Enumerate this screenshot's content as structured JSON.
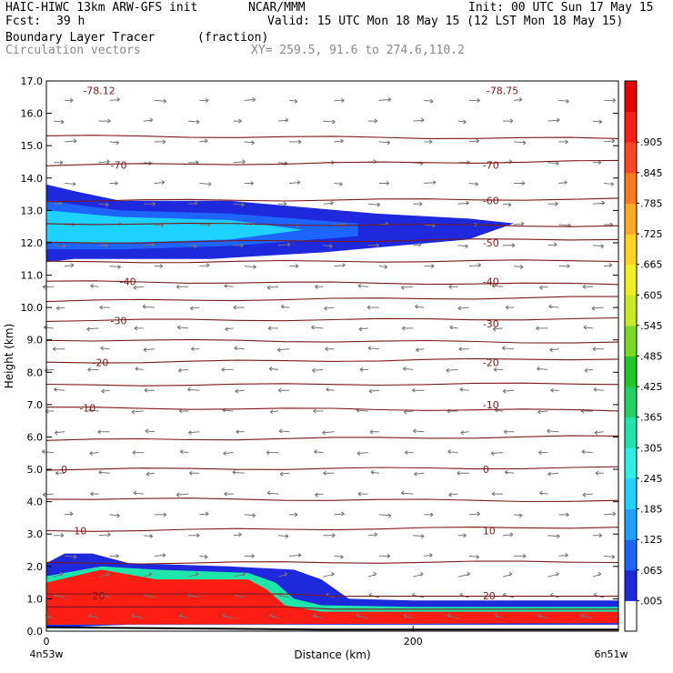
{
  "header": {
    "model": "HAIC-HIWC 13km ARW-GFS init",
    "org": "NCAR/MMM",
    "init": "Init: 00 UTC Sun 17 May 15",
    "fcst_label": "Fcst:",
    "fcst_value": "39 h",
    "valid": "Valid: 15 UTC Mon 18 May 15 (12 LST Mon 18 May 15)",
    "field_name": "Boundary Layer Tracer",
    "field_units": "(fraction)",
    "vector_label": "Circulation vectors",
    "xy_label": "XY= 259.5, 91.6 to 274.6,110.2"
  },
  "colors": {
    "contour": "#7a1a1a",
    "vector": "#777777",
    "ramp": [
      "#ffffff",
      "#1e28dc",
      "#1e64ff",
      "#1ea0ff",
      "#1ed2ff",
      "#28f0e6",
      "#1ee6aa",
      "#1ed264",
      "#1ec828",
      "#78dc1e",
      "#c8eb1e",
      "#f0f01e",
      "#ffd21e",
      "#ffaa1e",
      "#ff781e",
      "#ff461e",
      "#ff1e14",
      "#eb0000"
    ]
  },
  "chart_data": {
    "type": "cross-section",
    "title": "Boundary Layer Tracer",
    "units": "(fraction)",
    "xlabel": "Distance (km)",
    "ylabel": "Height (km)",
    "xlim": [
      0,
      312
    ],
    "ylim": [
      0,
      17
    ],
    "x_ticks": [
      0,
      200
    ],
    "x_tick_labels": [
      "0",
      "200"
    ],
    "x_endpoint_labels": [
      "4n53w",
      "6n51w"
    ],
    "y_ticks": [
      0,
      1,
      2,
      3,
      4,
      5,
      6,
      7,
      8,
      9,
      10,
      11,
      12,
      13,
      14,
      15,
      16,
      17
    ],
    "y_tick_labels": [
      "0.0",
      "1.0",
      "2.0",
      "3.0",
      "4.0",
      "5.0",
      "6.0",
      "7.0",
      "8.0",
      "9.0",
      "10.0",
      "11.0",
      "12.0",
      "13.0",
      "14.0",
      "15.0",
      "16.0",
      "17.0"
    ],
    "colorbar_labels": [
      ".005",
      ".065",
      ".125",
      ".185",
      ".245",
      ".305",
      ".365",
      ".425",
      ".485",
      ".545",
      ".605",
      ".665",
      ".725",
      ".785",
      ".845",
      ".905"
    ],
    "temperature_contours": [
      {
        "value": -78.12,
        "label": "-78.12",
        "x": 20,
        "y": 16.7
      },
      {
        "value": -78.75,
        "label": "-78.75",
        "x": 240,
        "y": 16.7
      },
      {
        "value": -70,
        "label": "-70",
        "x": 35,
        "y": 14.4
      },
      {
        "value": -70,
        "label": "-70",
        "x": 238,
        "y": 14.4
      },
      {
        "value": -60,
        "label": "-60",
        "x": 238,
        "y": 13.3
      },
      {
        "value": -50,
        "label": "-50",
        "x": 238,
        "y": 12.0
      },
      {
        "value": -40,
        "label": "-40",
        "x": 40,
        "y": 10.8
      },
      {
        "value": -40,
        "label": "-40",
        "x": 238,
        "y": 10.8
      },
      {
        "value": -30,
        "label": "-30",
        "x": 35,
        "y": 9.6
      },
      {
        "value": -30,
        "label": "-30",
        "x": 238,
        "y": 9.5
      },
      {
        "value": -20,
        "label": "-20",
        "x": 25,
        "y": 8.3
      },
      {
        "value": -20,
        "label": "-20",
        "x": 238,
        "y": 8.3
      },
      {
        "value": -10,
        "label": "-10",
        "x": 18,
        "y": 6.9
      },
      {
        "value": -10,
        "label": "-10",
        "x": 238,
        "y": 7.0
      },
      {
        "value": 0,
        "label": "0",
        "x": 8,
        "y": 5.0
      },
      {
        "value": 0,
        "label": "0",
        "x": 238,
        "y": 5.0
      },
      {
        "value": 10,
        "label": "10",
        "x": 15,
        "y": 3.1
      },
      {
        "value": 10,
        "label": "10",
        "x": 238,
        "y": 3.1
      },
      {
        "value": 20,
        "label": "20",
        "x": 25,
        "y": 1.1
      },
      {
        "value": 20,
        "label": "20",
        "x": 238,
        "y": 1.1
      }
    ],
    "contour_line_heights_km": [
      0.7,
      1.1,
      2.1,
      3.1,
      4.1,
      5.0,
      5.9,
      6.9,
      7.6,
      8.3,
      9.0,
      9.6,
      10.2,
      10.8,
      11.4,
      12.0,
      12.6,
      13.3,
      14.4,
      15.3
    ],
    "tracer_regions": [
      {
        "name": "upper-outer",
        "level": 0.005,
        "x": [
          0,
          0,
          15,
          40,
          100,
          180,
          230,
          255,
          230,
          150,
          90,
          40,
          15,
          0
        ],
        "y": [
          11.4,
          13.8,
          13.6,
          13.3,
          13.3,
          12.9,
          12.75,
          12.6,
          12.1,
          11.7,
          11.5,
          11.5,
          11.5,
          11.4
        ]
      },
      {
        "name": "upper-mid",
        "level": 0.065,
        "x": [
          0,
          0,
          40,
          100,
          170,
          170,
          100,
          40,
          0
        ],
        "y": [
          11.8,
          13.3,
          13.0,
          12.9,
          12.6,
          12.2,
          11.9,
          11.8,
          11.8
        ]
      },
      {
        "name": "upper-inner",
        "level": 0.185,
        "x": [
          0,
          0,
          40,
          100,
          140,
          100,
          40,
          0
        ],
        "y": [
          12.0,
          13.0,
          12.8,
          12.7,
          12.4,
          12.1,
          12.0,
          12.0
        ]
      },
      {
        "name": "lower-outer",
        "level": 0.005,
        "x": [
          0,
          0,
          10,
          25,
          45,
          100,
          135,
          150,
          165,
          200,
          250,
          312,
          312,
          250,
          200,
          165,
          150,
          100,
          45,
          0
        ],
        "y": [
          0.1,
          2.1,
          2.4,
          2.4,
          2.1,
          2.0,
          1.9,
          1.6,
          1.0,
          0.95,
          0.95,
          0.95,
          0.2,
          0.2,
          0.2,
          0.2,
          0.2,
          0.2,
          0.2,
          0.1
        ]
      },
      {
        "name": "lower-mid",
        "level": 0.305,
        "x": [
          0,
          0,
          30,
          60,
          110,
          125,
          135,
          150,
          200,
          312,
          312,
          0
        ],
        "y": [
          0.2,
          1.7,
          2.0,
          1.9,
          1.8,
          1.5,
          1.0,
          0.8,
          0.75,
          0.75,
          0.25,
          0.2
        ]
      },
      {
        "name": "lower-inner",
        "level": 0.905,
        "x": [
          0,
          0,
          30,
          60,
          110,
          120,
          130,
          150,
          312,
          312,
          0
        ],
        "y": [
          0.2,
          1.5,
          1.9,
          1.6,
          1.6,
          1.3,
          0.8,
          0.6,
          0.6,
          0.25,
          0.2
        ]
      }
    ]
  }
}
